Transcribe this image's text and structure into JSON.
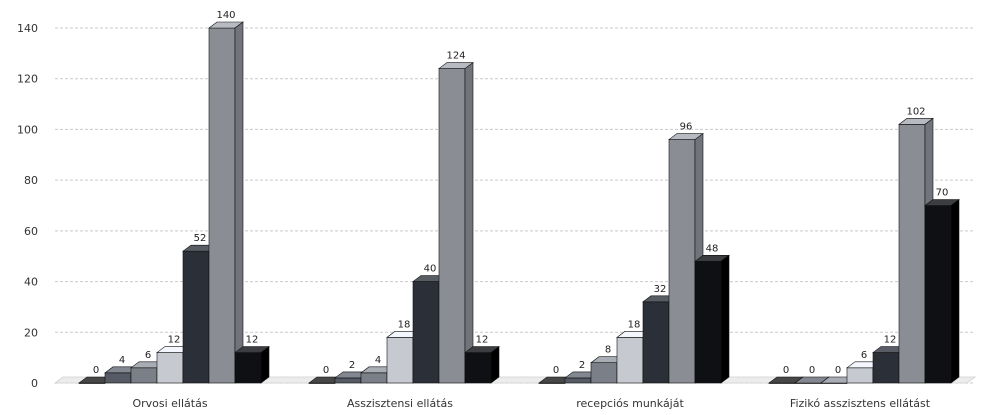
{
  "chart_data": {
    "type": "bar",
    "title": "",
    "xlabel": "",
    "ylabel": "",
    "ylim": [
      0,
      140
    ],
    "yticks": [
      0,
      20,
      40,
      60,
      80,
      100,
      120,
      140
    ],
    "grid": true,
    "legend": "none",
    "categories": [
      "Orvosi ellátás",
      "Asszisztensi ellátás",
      "recepciós munkáját",
      "Fizikó asszisztens ellátást"
    ],
    "series": [
      {
        "values": [
          0,
          0,
          0,
          0
        ],
        "color": "#1a1a1a"
      },
      {
        "values": [
          4,
          2,
          2,
          0
        ],
        "color": "#555a64"
      },
      {
        "values": [
          6,
          4,
          8,
          0
        ],
        "color": "#7a7f88"
      },
      {
        "values": [
          12,
          18,
          18,
          6
        ],
        "color": "#c6cad0"
      },
      {
        "values": [
          52,
          40,
          32,
          12
        ],
        "color": "#2b3038"
      },
      {
        "values": [
          140,
          124,
          96,
          102
        ],
        "color": "#8a8e94"
      },
      {
        "values": [
          12,
          12,
          48,
          70
        ],
        "color": "#0e1014"
      }
    ]
  }
}
